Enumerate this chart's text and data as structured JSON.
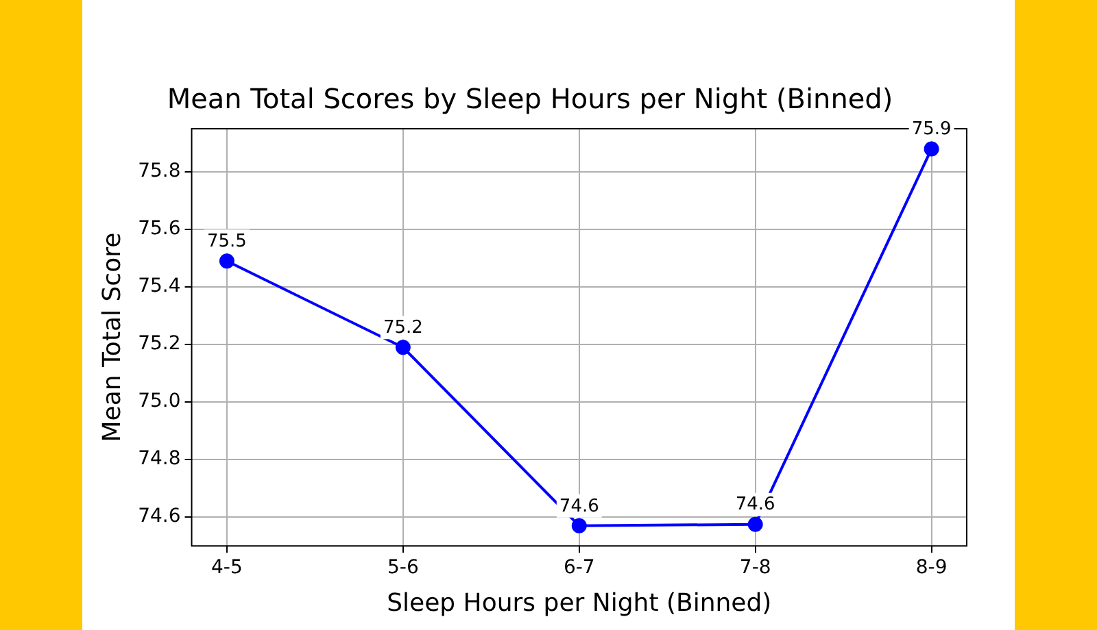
{
  "chart_data": {
    "type": "line",
    "title": "Mean Total Scores by Sleep Hours per Night (Binned)",
    "xlabel": "Sleep Hours per Night (Binned)",
    "ylabel": "Mean Total Score",
    "categories": [
      "4-5",
      "5-6",
      "6-7",
      "7-8",
      "8-9"
    ],
    "series": [
      {
        "color": "#0000ff",
        "values": [
          75.49,
          75.19,
          74.57,
          74.575,
          75.88
        ],
        "value_labels": [
          "75.5",
          "75.2",
          "74.6",
          "74.6",
          "75.9"
        ]
      }
    ],
    "ylim": [
      74.5,
      75.95
    ],
    "yticks": [
      74.6,
      74.8,
      {
        "value": 75,
        "label": "75.0"
      },
      75.2,
      75.4,
      75.6,
      75.8
    ],
    "grid": true,
    "legend": false,
    "marker": "circle",
    "line_style": "solid"
  }
}
